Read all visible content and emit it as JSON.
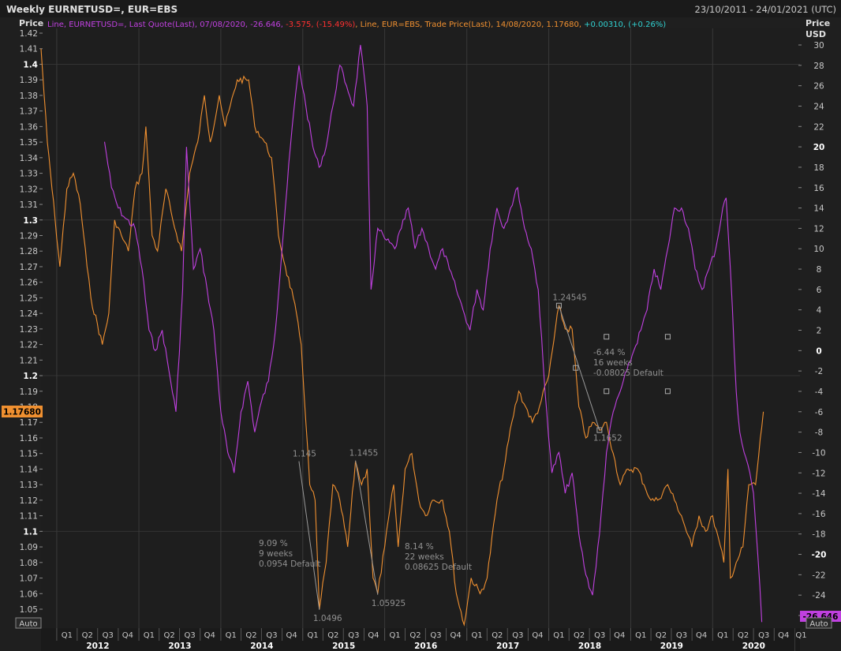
{
  "header": {
    "title": "Weekly EURNETUSD=, EUR=EBS",
    "date_range": "23/10/2011 - 24/01/2021 (UTC)"
  },
  "legend": {
    "purple_prefix": "Line, EURNETUSD=, Last Quote(Last), 07/08/2020, -26.646, ",
    "purple_change": "-3.575, (-15.49%)",
    "orange_text": ", Line, EUR=EBS, Trade Price(Last), 14/08/2020, 1.17680, ",
    "orange_change": "+0.00310, (+0.26%)"
  },
  "left_axis": {
    "title": "Price",
    "auto_label": "Auto",
    "current_label": "1.17680"
  },
  "right_axis": {
    "title": "Price",
    "unit": "USD",
    "auto_label": "Auto",
    "current_label": "-26.646"
  },
  "colors": {
    "background": "#1f1f1f",
    "grid": "#3a3a3a",
    "axis_text": "#c8c8c8",
    "purple_series": "#c040e0",
    "orange_series": "#f09030",
    "legend_purple": "#c040e0",
    "legend_orange": "#f09030",
    "legend_negative": "#ff3030",
    "legend_positive": "#30d0d0",
    "annotation": "#909090"
  },
  "annotations": [
    {
      "label_id": "ann-1145",
      "text": "1.145",
      "x": "2014-12-15",
      "y": 1.145
    },
    {
      "label_id": "ann-10496",
      "text": "1.0496",
      "x": "2015-03-16",
      "y": 1.0496
    },
    {
      "label_id": "ann-11455",
      "text": "1.1455",
      "x": "2015-08-24",
      "y": 1.1455
    },
    {
      "label_id": "ann-105925",
      "text": "1.05925",
      "x": "2015-12-01",
      "y": 1.05925
    },
    {
      "label_id": "ann-124545",
      "text": "1.24545",
      "x": "2018-02-15",
      "y": 1.24545
    },
    {
      "label_id": "ann-11652",
      "text": "1.1652",
      "x": "2018-08-15",
      "y": 1.1652
    }
  ],
  "measurement_notes": [
    {
      "lines": [
        "9.09 %",
        "9 weeks",
        "0.0954 Default"
      ]
    },
    {
      "lines": [
        "8.14 %",
        "22 weeks",
        "0.08625 Default"
      ]
    },
    {
      "lines": [
        "-6.44 %",
        "16 weeks",
        "-0.08025 Default"
      ]
    }
  ],
  "chart_data": {
    "type": "line",
    "x_axis": {
      "range": [
        "2011-10-23",
        "2021-01-24"
      ],
      "years": [
        "2012",
        "2013",
        "2014",
        "2015",
        "2016",
        "2017",
        "2018",
        "2019",
        "2020"
      ],
      "quarters": [
        "Q1",
        "Q2",
        "Q3",
        "Q4"
      ],
      "extra_quarter": "Q1"
    },
    "left_axis": {
      "ylim": [
        1.04,
        1.42
      ],
      "ticks": [
        1.42,
        1.41,
        1.4,
        1.39,
        1.38,
        1.37,
        1.36,
        1.35,
        1.34,
        1.33,
        1.32,
        1.31,
        1.3,
        1.29,
        1.28,
        1.27,
        1.26,
        1.25,
        1.24,
        1.23,
        1.22,
        1.21,
        1.2,
        1.19,
        1.18,
        1.17,
        1.16,
        1.15,
        1.14,
        1.13,
        1.12,
        1.11,
        1.1,
        1.09,
        1.08,
        1.07,
        1.06,
        1.05
      ],
      "bold_ticks": [
        1.4,
        1.3,
        1.2,
        1.1
      ]
    },
    "right_axis": {
      "ylim": [
        -27,
        31
      ],
      "ticks": [
        30,
        28,
        26,
        24,
        22,
        20,
        18,
        16,
        14,
        12,
        10,
        8,
        6,
        4,
        2,
        0,
        -2,
        -4,
        -6,
        -8,
        -10,
        -12,
        -14,
        -16,
        -18,
        -20,
        -22,
        -24,
        -26
      ],
      "bold_ticks": [
        20,
        0,
        -20
      ]
    },
    "series": [
      {
        "axis": "left",
        "points": [
          [
            "2011-10-23",
            1.41
          ],
          [
            "2011-11-20",
            1.35
          ],
          [
            "2011-12-25",
            1.3
          ],
          [
            "2012-01-15",
            1.27
          ],
          [
            "2012-02-15",
            1.32
          ],
          [
            "2012-03-15",
            1.33
          ],
          [
            "2012-04-15",
            1.31
          ],
          [
            "2012-05-15",
            1.27
          ],
          [
            "2012-06-01",
            1.25
          ],
          [
            "2012-07-22",
            1.22
          ],
          [
            "2012-08-20",
            1.24
          ],
          [
            "2012-09-15",
            1.3
          ],
          [
            "2012-10-15",
            1.29
          ],
          [
            "2012-11-15",
            1.28
          ],
          [
            "2012-12-15",
            1.32
          ],
          [
            "2013-01-15",
            1.33
          ],
          [
            "2013-02-01",
            1.36
          ],
          [
            "2013-03-01",
            1.29
          ],
          [
            "2013-03-25",
            1.28
          ],
          [
            "2013-05-01",
            1.32
          ],
          [
            "2013-06-01",
            1.3
          ],
          [
            "2013-07-10",
            1.28
          ],
          [
            "2013-08-15",
            1.33
          ],
          [
            "2013-09-20",
            1.35
          ],
          [
            "2013-10-20",
            1.38
          ],
          [
            "2013-11-15",
            1.35
          ],
          [
            "2013-12-25",
            1.38
          ],
          [
            "2014-01-20",
            1.36
          ],
          [
            "2014-03-15",
            1.39
          ],
          [
            "2014-05-05",
            1.39
          ],
          [
            "2014-06-01",
            1.36
          ],
          [
            "2014-07-15",
            1.35
          ],
          [
            "2014-08-15",
            1.34
          ],
          [
            "2014-09-15",
            1.29
          ],
          [
            "2014-10-15",
            1.27
          ],
          [
            "2014-11-20",
            1.25
          ],
          [
            "2014-12-25",
            1.22
          ],
          [
            "2015-01-15",
            1.17
          ],
          [
            "2015-02-01",
            1.13
          ],
          [
            "2015-02-25",
            1.12
          ],
          [
            "2015-03-16",
            1.05
          ],
          [
            "2015-04-15",
            1.08
          ],
          [
            "2015-05-15",
            1.13
          ],
          [
            "2015-06-15",
            1.12
          ],
          [
            "2015-07-20",
            1.09
          ],
          [
            "2015-08-24",
            1.145
          ],
          [
            "2015-09-20",
            1.13
          ],
          [
            "2015-10-15",
            1.14
          ],
          [
            "2015-11-10",
            1.07
          ],
          [
            "2015-12-01",
            1.06
          ],
          [
            "2016-01-01",
            1.09
          ],
          [
            "2016-02-10",
            1.13
          ],
          [
            "2016-03-01",
            1.09
          ],
          [
            "2016-04-01",
            1.14
          ],
          [
            "2016-05-01",
            1.15
          ],
          [
            "2016-06-01",
            1.12
          ],
          [
            "2016-07-01",
            1.11
          ],
          [
            "2016-08-01",
            1.12
          ],
          [
            "2016-09-15",
            1.12
          ],
          [
            "2016-10-15",
            1.1
          ],
          [
            "2016-11-15",
            1.06
          ],
          [
            "2016-12-20",
            1.04
          ],
          [
            "2017-01-20",
            1.07
          ],
          [
            "2017-03-01",
            1.06
          ],
          [
            "2017-04-01",
            1.07
          ],
          [
            "2017-05-15",
            1.12
          ],
          [
            "2017-06-15",
            1.14
          ],
          [
            "2017-07-20",
            1.17
          ],
          [
            "2017-08-20",
            1.19
          ],
          [
            "2017-09-20",
            1.18
          ],
          [
            "2017-10-20",
            1.17
          ],
          [
            "2017-11-20",
            1.18
          ],
          [
            "2018-01-01",
            1.2
          ],
          [
            "2018-02-15",
            1.245
          ],
          [
            "2018-03-15",
            1.23
          ],
          [
            "2018-04-15",
            1.23
          ],
          [
            "2018-05-15",
            1.18
          ],
          [
            "2018-06-15",
            1.16
          ],
          [
            "2018-07-15",
            1.17
          ],
          [
            "2018-08-15",
            1.165
          ],
          [
            "2018-09-15",
            1.17
          ],
          [
            "2018-10-15",
            1.15
          ],
          [
            "2018-11-15",
            1.13
          ],
          [
            "2018-12-20",
            1.14
          ],
          [
            "2019-02-01",
            1.14
          ],
          [
            "2019-03-01",
            1.13
          ],
          [
            "2019-04-01",
            1.12
          ],
          [
            "2019-05-01",
            1.12
          ],
          [
            "2019-06-15",
            1.13
          ],
          [
            "2019-07-15",
            1.12
          ],
          [
            "2019-08-15",
            1.11
          ],
          [
            "2019-09-30",
            1.09
          ],
          [
            "2019-11-01",
            1.11
          ],
          [
            "2019-12-01",
            1.1
          ],
          [
            "2020-01-01",
            1.11
          ],
          [
            "2020-02-20",
            1.08
          ],
          [
            "2020-03-09",
            1.14
          ],
          [
            "2020-03-20",
            1.07
          ],
          [
            "2020-04-15",
            1.08
          ],
          [
            "2020-05-15",
            1.09
          ],
          [
            "2020-06-10",
            1.13
          ],
          [
            "2020-07-10",
            1.13
          ],
          [
            "2020-08-14",
            1.1768
          ]
        ]
      },
      {
        "axis": "right",
        "points": [
          [
            "2012-08-01",
            20.5
          ],
          [
            "2012-09-01",
            16
          ],
          [
            "2012-10-01",
            14
          ],
          [
            "2012-11-01",
            13
          ],
          [
            "2012-12-15",
            12
          ],
          [
            "2013-01-15",
            8
          ],
          [
            "2013-02-15",
            2
          ],
          [
            "2013-03-15",
            0
          ],
          [
            "2013-04-15",
            2
          ],
          [
            "2013-05-15",
            -2
          ],
          [
            "2013-06-15",
            -6
          ],
          [
            "2013-07-15",
            6
          ],
          [
            "2013-08-01",
            20
          ],
          [
            "2013-09-01",
            8
          ],
          [
            "2013-10-01",
            10
          ],
          [
            "2013-11-01",
            6
          ],
          [
            "2013-12-01",
            2
          ],
          [
            "2014-01-01",
            -6
          ],
          [
            "2014-02-01",
            -10
          ],
          [
            "2014-03-01",
            -12
          ],
          [
            "2014-04-01",
            -6
          ],
          [
            "2014-05-01",
            -3
          ],
          [
            "2014-06-01",
            -8
          ],
          [
            "2014-07-01",
            -5
          ],
          [
            "2014-08-01",
            -3
          ],
          [
            "2014-09-01",
            2
          ],
          [
            "2014-10-15",
            14
          ],
          [
            "2014-11-15",
            22
          ],
          [
            "2014-12-15",
            28
          ],
          [
            "2015-01-15",
            24
          ],
          [
            "2015-02-15",
            20
          ],
          [
            "2015-03-15",
            18
          ],
          [
            "2015-04-15",
            20
          ],
          [
            "2015-05-15",
            24
          ],
          [
            "2015-06-15",
            28
          ],
          [
            "2015-07-15",
            26
          ],
          [
            "2015-08-15",
            24
          ],
          [
            "2015-09-15",
            30
          ],
          [
            "2015-10-15",
            24
          ],
          [
            "2015-11-01",
            6
          ],
          [
            "2015-12-01",
            12
          ],
          [
            "2016-01-01",
            11
          ],
          [
            "2016-02-15",
            10
          ],
          [
            "2016-03-15",
            12
          ],
          [
            "2016-04-15",
            14
          ],
          [
            "2016-05-15",
            10
          ],
          [
            "2016-06-15",
            12
          ],
          [
            "2016-07-15",
            10
          ],
          [
            "2016-08-15",
            8
          ],
          [
            "2016-09-15",
            10
          ],
          [
            "2016-10-15",
            8
          ],
          [
            "2016-11-15",
            6
          ],
          [
            "2016-12-15",
            4
          ],
          [
            "2017-01-15",
            2
          ],
          [
            "2017-02-15",
            6
          ],
          [
            "2017-03-15",
            4
          ],
          [
            "2017-04-15",
            10
          ],
          [
            "2017-05-15",
            14
          ],
          [
            "2017-06-15",
            12
          ],
          [
            "2017-07-15",
            14
          ],
          [
            "2017-08-15",
            16
          ],
          [
            "2017-09-15",
            12
          ],
          [
            "2017-10-15",
            10
          ],
          [
            "2017-11-15",
            6
          ],
          [
            "2017-12-15",
            -4
          ],
          [
            "2018-01-15",
            -12
          ],
          [
            "2018-02-15",
            -10
          ],
          [
            "2018-03-15",
            -14
          ],
          [
            "2018-04-15",
            -12
          ],
          [
            "2018-05-15",
            -18
          ],
          [
            "2018-06-15",
            -22
          ],
          [
            "2018-07-15",
            -24
          ],
          [
            "2018-08-15",
            -18
          ],
          [
            "2018-09-15",
            -10
          ],
          [
            "2018-10-15",
            -6
          ],
          [
            "2018-11-15",
            -4
          ],
          [
            "2018-12-15",
            -2
          ],
          [
            "2019-01-15",
            0
          ],
          [
            "2019-02-15",
            2
          ],
          [
            "2019-03-15",
            4
          ],
          [
            "2019-04-15",
            8
          ],
          [
            "2019-05-15",
            6
          ],
          [
            "2019-06-15",
            10
          ],
          [
            "2019-07-15",
            14
          ],
          [
            "2019-08-15",
            14
          ],
          [
            "2019-09-15",
            12
          ],
          [
            "2019-10-15",
            8
          ],
          [
            "2019-11-15",
            6
          ],
          [
            "2019-12-15",
            8
          ],
          [
            "2020-01-15",
            10
          ],
          [
            "2020-02-15",
            14
          ],
          [
            "2020-03-01",
            15
          ],
          [
            "2020-03-20",
            8
          ],
          [
            "2020-04-15",
            -4
          ],
          [
            "2020-05-01",
            -8
          ],
          [
            "2020-05-20",
            -10
          ],
          [
            "2020-06-15",
            -12
          ],
          [
            "2020-07-01",
            -14
          ],
          [
            "2020-07-20",
            -20
          ],
          [
            "2020-08-07",
            -26.646
          ]
        ]
      }
    ]
  }
}
